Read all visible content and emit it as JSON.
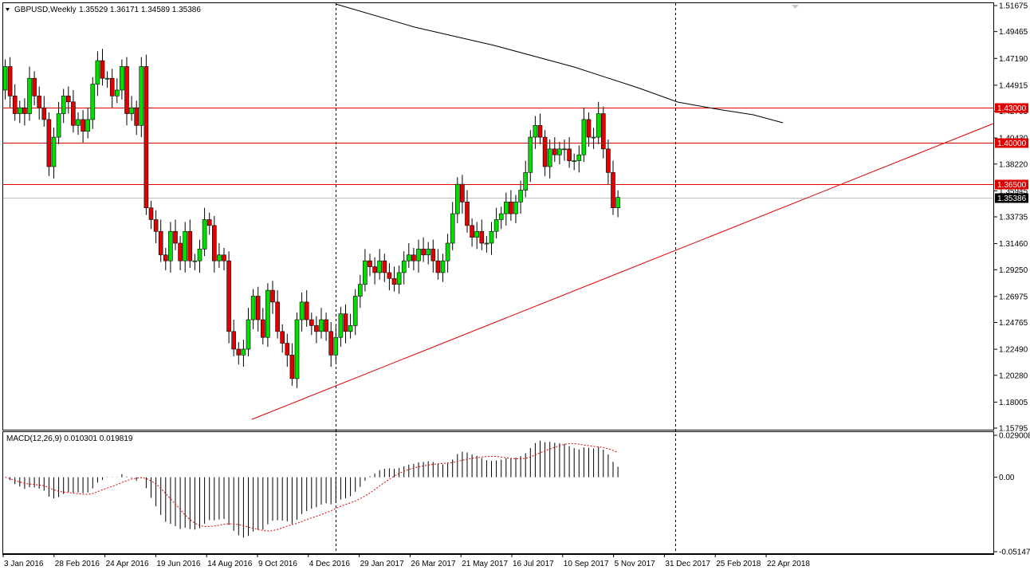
{
  "chart_data": {
    "type": "candlestick",
    "symbol_label": "GBPUSD,Weekly",
    "ohlc_label": "1.35529 1.36171 1.34589 1.35386",
    "price_scale": {
      "min": 1.15795,
      "max": 1.51675,
      "ticks": [
        "1.51675",
        "1.49465",
        "1.47190",
        "1.44915",
        "1.42705",
        "1.40430",
        "1.38220",
        "1.35945",
        "1.33735",
        "1.31460",
        "1.29250",
        "1.26975",
        "1.24765",
        "1.22490",
        "1.20280",
        "1.18005",
        "1.15795"
      ]
    },
    "horizontal_levels": [
      {
        "label": "1.43000",
        "value": 1.43,
        "color": "#e00000"
      },
      {
        "label": "1.40000",
        "value": 1.4,
        "color": "#e00000"
      },
      {
        "label": "1.36500",
        "value": 1.365,
        "color": "#e00000"
      }
    ],
    "current_price": {
      "label": "1.35386",
      "value": 1.35386
    },
    "x_ticks": [
      "3 Jan 2016",
      "28 Feb 2016",
      "24 Apr 2016",
      "19 Jun 2016",
      "14 Aug 2016",
      "9 Oct 2016",
      "4 Dec 2016",
      "29 Jan 2017",
      "26 Mar 2017",
      "21 May 2017",
      "16 Jul 2017",
      "10 Sep 2017",
      "5 Nov 2017",
      "31 Dec 2017",
      "25 Feb 2018",
      "22 Apr 2018"
    ],
    "closes": [
      1.465,
      1.44,
      1.425,
      1.43,
      1.425,
      1.455,
      1.44,
      1.43,
      1.42,
      1.38,
      1.405,
      1.425,
      1.44,
      1.435,
      1.415,
      1.42,
      1.41,
      1.42,
      1.45,
      1.47,
      1.455,
      1.455,
      1.44,
      1.445,
      1.465,
      1.425,
      1.43,
      1.415,
      1.465,
      1.345,
      1.335,
      1.325,
      1.305,
      1.3,
      1.325,
      1.315,
      1.3,
      1.325,
      1.3,
      1.3,
      1.31,
      1.335,
      1.33,
      1.3,
      1.305,
      1.3,
      1.24,
      1.225,
      1.22,
      1.225,
      1.25,
      1.27,
      1.25,
      1.235,
      1.275,
      1.265,
      1.24,
      1.23,
      1.22,
      1.2,
      1.25,
      1.265,
      1.25,
      1.245,
      1.24,
      1.25,
      1.24,
      1.22,
      1.235,
      1.255,
      1.24,
      1.245,
      1.27,
      1.28,
      1.3,
      1.295,
      1.29,
      1.3,
      1.29,
      1.285,
      1.28,
      1.29,
      1.3,
      1.305,
      1.3,
      1.31,
      1.305,
      1.31,
      1.3,
      1.29,
      1.3,
      1.315,
      1.34,
      1.365,
      1.35,
      1.33,
      1.32,
      1.325,
      1.315,
      1.315,
      1.325,
      1.335,
      1.34,
      1.35,
      1.34,
      1.35,
      1.36,
      1.375,
      1.405,
      1.415,
      1.405,
      1.38,
      1.395,
      1.39,
      1.395,
      1.395,
      1.385,
      1.385,
      1.39,
      1.42,
      1.405,
      1.405,
      1.425,
      1.395,
      1.375,
      1.345,
      1.35386
    ],
    "ma_line": [
      [
        421,
        5
      ],
      [
        520,
        34
      ],
      [
        620,
        57
      ],
      [
        720,
        84
      ],
      [
        800,
        110
      ],
      [
        850,
        128
      ],
      [
        900,
        137
      ],
      [
        945,
        144
      ],
      [
        982,
        154
      ]
    ],
    "trendline": [
      [
        316,
        526
      ],
      [
        1246,
        155
      ]
    ],
    "vlines": [
      421,
      847
    ],
    "macd": {
      "label": "MACD(12,26,9) 0.010301 0.019819",
      "ticks": [
        "0.029008",
        "0.00",
        "-0.051476"
      ],
      "min": -0.051476,
      "max": 0.029008
    }
  }
}
